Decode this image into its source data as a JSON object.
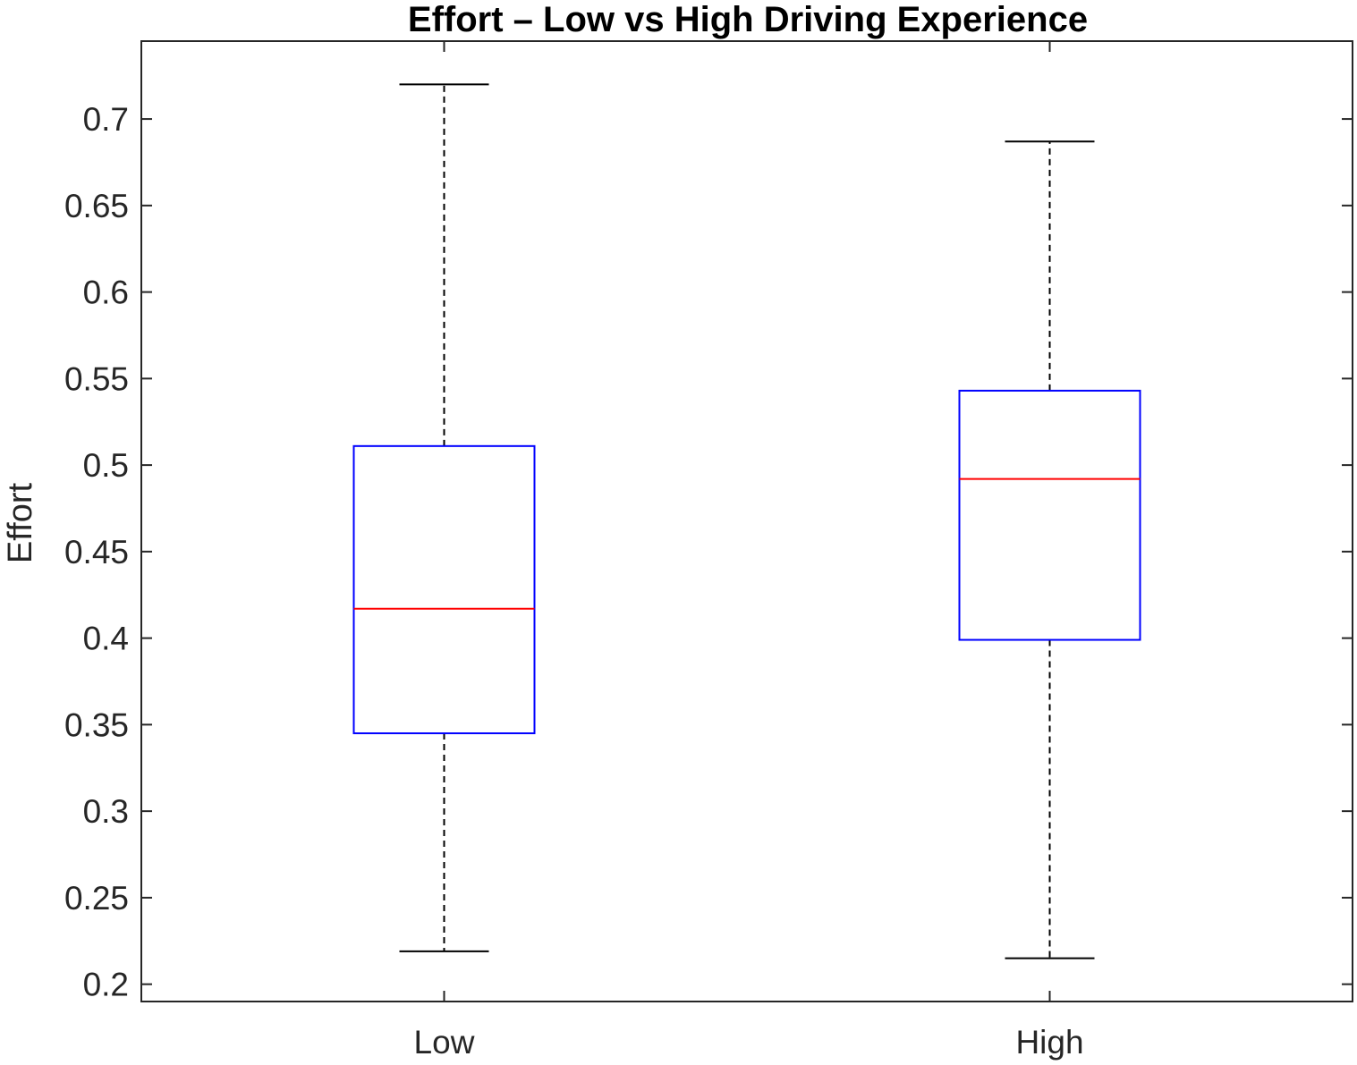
{
  "chart_data": {
    "type": "boxplot",
    "title": "Effort  – Low vs High Driving Experience",
    "xlabel": "",
    "ylabel": "Effort",
    "ylim": [
      0.19,
      0.745
    ],
    "yticks": [
      0.2,
      0.25,
      0.3,
      0.35,
      0.4,
      0.45,
      0.5,
      0.55,
      0.6,
      0.65,
      0.7
    ],
    "ytick_labels": [
      "0.2",
      "0.25",
      "0.3",
      "0.35",
      "0.4",
      "0.45",
      "0.5",
      "0.55",
      "0.6",
      "0.65",
      "0.7"
    ],
    "categories": [
      "Low",
      "High"
    ],
    "boxes": [
      {
        "category": "Low",
        "whisker_low": 0.219,
        "q1": 0.345,
        "median": 0.417,
        "q3": 0.511,
        "whisker_high": 0.72
      },
      {
        "category": "High",
        "whisker_low": 0.215,
        "q1": 0.399,
        "median": 0.492,
        "q3": 0.543,
        "whisker_high": 0.687
      }
    ],
    "grid": false,
    "colors": {
      "box": "#0000ff",
      "median": "#ff0000",
      "whisker": "#000000",
      "axes": "#262626"
    }
  }
}
